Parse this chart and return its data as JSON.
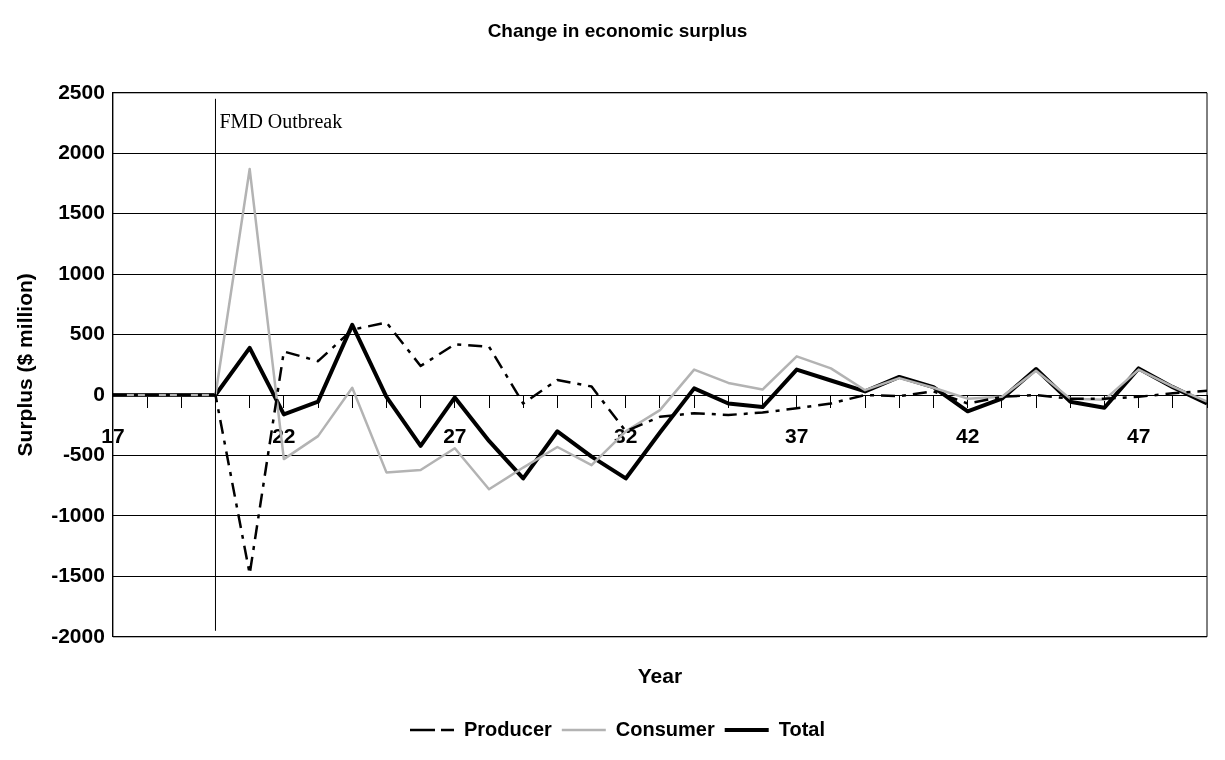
{
  "chart_data": {
    "type": "line",
    "title": "Change in economic surplus",
    "xlabel": "Year",
    "ylabel": "Surplus ($ million)",
    "x": [
      17,
      18,
      19,
      20,
      21,
      22,
      23,
      24,
      25,
      26,
      27,
      28,
      29,
      30,
      31,
      32,
      33,
      34,
      35,
      36,
      37,
      38,
      39,
      40,
      41,
      42,
      43,
      44,
      45,
      46,
      47,
      48,
      49
    ],
    "xlim": [
      17,
      49
    ],
    "xticks": [
      17,
      {
        "value": 18,
        "label": null
      },
      {
        "value": 19,
        "label": null
      },
      {
        "value": 20,
        "label": null
      },
      {
        "value": 21,
        "label": null
      },
      22,
      {
        "value": 23,
        "label": null
      },
      {
        "value": 24,
        "label": null
      },
      {
        "value": 25,
        "label": null
      },
      {
        "value": 26,
        "label": null
      },
      27,
      {
        "value": 28,
        "label": null
      },
      {
        "value": 29,
        "label": null
      },
      {
        "value": 30,
        "label": null
      },
      {
        "value": 31,
        "label": null
      },
      32,
      {
        "value": 33,
        "label": null
      },
      {
        "value": 34,
        "label": null
      },
      {
        "value": 35,
        "label": null
      },
      {
        "value": 36,
        "label": null
      },
      37,
      {
        "value": 38,
        "label": null
      },
      {
        "value": 39,
        "label": null
      },
      {
        "value": 40,
        "label": null
      },
      {
        "value": 41,
        "label": null
      },
      42,
      {
        "value": 43,
        "label": null
      },
      {
        "value": 44,
        "label": null
      },
      {
        "value": 45,
        "label": null
      },
      {
        "value": 46,
        "label": null
      },
      47,
      {
        "value": 48,
        "label": null
      },
      {
        "value": 49,
        "label": null
      }
    ],
    "ylim": [
      -2000,
      2500
    ],
    "yticks": [
      -2000,
      -1500,
      -1000,
      -500,
      0,
      500,
      1000,
      1500,
      2000,
      2500
    ],
    "grid": "y",
    "legend": "bottom",
    "marker": "none",
    "ref_lines": [
      {
        "axis": "x",
        "value": 20,
        "label": "FMD Outbreak",
        "color": "#000000"
      }
    ],
    "series": [
      {
        "name": "Producer",
        "color": "#000000",
        "line_style": "dashed",
        "values": [
          0,
          0,
          0,
          0,
          -1480,
          360,
          280,
          540,
          600,
          240,
          420,
          400,
          -70,
          125,
          70,
          -300,
          -180,
          -150,
          -165,
          -145,
          -110,
          -70,
          0,
          -10,
          30,
          -70,
          -15,
          0,
          -30,
          -30,
          -15,
          15,
          35
        ]
      },
      {
        "name": "Consumer",
        "color": "#b3b3b3",
        "line_style": "solid",
        "values": [
          0,
          0,
          0,
          0,
          1870,
          -530,
          -340,
          60,
          -640,
          -620,
          -440,
          -780,
          -600,
          -430,
          -580,
          -300,
          -125,
          210,
          100,
          45,
          320,
          220,
          40,
          140,
          60,
          -30,
          -15,
          200,
          -30,
          -40,
          210,
          70,
          -55
        ]
      },
      {
        "name": "Total",
        "color": "#000000",
        "line_style": "solid",
        "values": [
          0,
          0,
          0,
          0,
          390,
          -160,
          -55,
          580,
          -15,
          -420,
          -20,
          -380,
          -690,
          -300,
          -510,
          -690,
          -310,
          55,
          -70,
          -100,
          210,
          120,
          30,
          150,
          65,
          -135,
          -30,
          215,
          -55,
          -105,
          220,
          65,
          -70
        ]
      }
    ]
  }
}
